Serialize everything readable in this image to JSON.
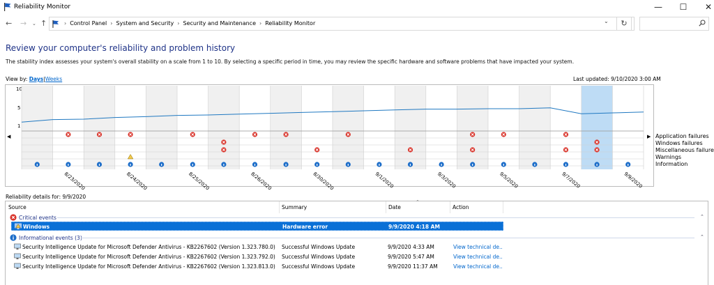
{
  "window": {
    "title": "Reliability Monitor",
    "buttons": {
      "minimize": "—",
      "maximize": "☐",
      "close": "✕"
    }
  },
  "nav": {
    "back": "←",
    "forward": "→",
    "dropdown": "⌄",
    "up": "↑",
    "refresh": "↻"
  },
  "breadcrumbs": [
    "Control Panel",
    "System and Security",
    "Security and Maintenance",
    "Reliability Monitor"
  ],
  "search": {
    "placeholder": ""
  },
  "header": {
    "title": "Review your computer's reliability and problem history",
    "description": "The stability index assesses your system's overall stability on a scale from 1 to 10. By selecting a specific period in time, you may review the specific hardware and software problems that have impacted your system.",
    "view_by_label": "View by:",
    "view_days": "Days",
    "view_weeks": "Weeks",
    "last_updated": "Last updated: 9/10/2020 3:00 AM"
  },
  "chart": {
    "yticks": [
      "10",
      "5",
      "1"
    ],
    "row_labels": [
      "Application failures",
      "Windows failures",
      "Miscellaneous failures",
      "Warnings",
      "Information"
    ],
    "date_labels": [
      "8/23/2020",
      "8/24/2020",
      "8/25/2020",
      "8/26/2020",
      "8/30/2020",
      "9/1/2020",
      "9/3/2020",
      "9/5/2020",
      "9/7/2020",
      "9/9/2020"
    ],
    "selected_column": 18,
    "index_values": [
      1.8,
      2.4,
      2.5,
      2.9,
      3.1,
      3.4,
      3.5,
      3.7,
      3.9,
      4.1,
      4.3,
      4.5,
      4.7,
      4.9,
      4.9,
      5.0,
      5.0,
      5.2,
      3.8,
      4.0,
      4.2
    ],
    "app_failures": [
      1,
      2,
      3,
      5,
      7,
      8,
      10,
      14,
      15,
      17
    ],
    "windows_failures": [
      18
    ],
    "misc_failures": [
      6,
      9,
      12,
      14,
      17,
      18
    ],
    "extra_misc_failures": [
      6
    ],
    "warnings": [
      3
    ],
    "information": [
      0,
      1,
      2,
      3,
      4,
      5,
      6,
      7,
      8,
      9,
      10,
      11,
      12,
      13,
      14,
      15,
      16,
      17,
      18,
      19
    ]
  },
  "details": {
    "title": "Reliability details for: 9/9/2020",
    "columns": {
      "source": "Source",
      "summary": "Summary",
      "date": "Date",
      "action": "Action"
    },
    "critical_group": "Critical events",
    "critical_rows": [
      {
        "source": "Windows",
        "summary": "Hardware error",
        "date": "9/9/2020 4:18 AM",
        "action": ""
      }
    ],
    "info_group": "Informational events (3)",
    "info_rows": [
      {
        "source": "Security Intelligence Update for Microsoft Defender Antivirus - KB2267602 (Version 1.323.780.0)",
        "summary": "Successful Windows Update",
        "date": "9/9/2020 4:33 AM",
        "action": "View technical de..."
      },
      {
        "source": "Security Intelligence Update for Microsoft Defender Antivirus - KB2267602 (Version 1.323.792.0)",
        "summary": "Successful Windows Update",
        "date": "9/9/2020 5:47 AM",
        "action": "View technical de..."
      },
      {
        "source": "Security Intelligence Update for Microsoft Defender Antivirus - KB2267602 (Version 1.323.813.0)",
        "summary": "Successful Windows Update",
        "date": "9/9/2020 11:37 AM",
        "action": "View technical de..."
      }
    ]
  }
}
